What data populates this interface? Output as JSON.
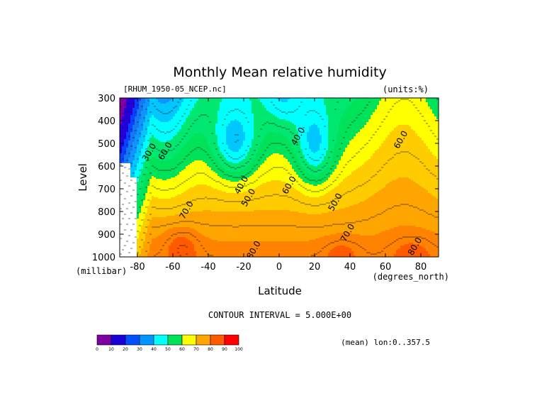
{
  "chart_data": {
    "type": "heatmap",
    "title": "Monthly Mean relative humidity",
    "dataset_label": "[RHUM_1950-05_NCEP.nc]",
    "units_label": "(units:%)",
    "xlabel": "Latitude",
    "x_units": "(degrees_north)",
    "ylabel": "Level",
    "y_units": "(millibar)",
    "xlim": [
      -90,
      90
    ],
    "ylim": [
      1000,
      300
    ],
    "x_ticks": [
      -80,
      -60,
      -40,
      -20,
      0,
      20,
      40,
      60,
      80
    ],
    "y_ticks": [
      300,
      400,
      500,
      600,
      700,
      800,
      900,
      1000
    ],
    "contour_interval_text": "CONTOUR INTERVAL = 5.000E+00",
    "mean_text": "(mean) lon:0..357.5",
    "contour_labels": [
      {
        "text": "30.0",
        "x": -72,
        "y": 545
      },
      {
        "text": "60.0",
        "x": -63,
        "y": 540
      },
      {
        "text": "40.0",
        "x": -20,
        "y": 690
      },
      {
        "text": "50.0",
        "x": -16,
        "y": 745
      },
      {
        "text": "60.0",
        "x": 7,
        "y": 690
      },
      {
        "text": "40.0",
        "x": 12,
        "y": 475
      },
      {
        "text": "50.0",
        "x": 33,
        "y": 765
      },
      {
        "text": "70.0",
        "x": -51,
        "y": 800
      },
      {
        "text": "70.0",
        "x": 40,
        "y": 900
      },
      {
        "text": "80.0",
        "x": -13,
        "y": 975
      },
      {
        "text": "80.0",
        "x": 78,
        "y": 960
      },
      {
        "text": "60.0",
        "x": 70,
        "y": 490
      }
    ],
    "colorbar": {
      "levels": [
        "0",
        "10",
        "20",
        "30",
        "40",
        "50",
        "60",
        "70",
        "80",
        "90",
        "100"
      ],
      "colors": [
        "#7d00a3",
        "#1a00d8",
        "#0050ff",
        "#0095ff",
        "#00ffff",
        "#00e25a",
        "#ffff00",
        "#ffa500",
        "#ff5a00",
        "#ff0000"
      ]
    },
    "band_colors": {
      "25": "#2400dd",
      "30": "#0a40ff",
      "35": "#1478f0",
      "40": "#0f95ff",
      "45": "#00c8ff",
      "50": "#00ffff",
      "55": "#00e870",
      "60": "#00e25a",
      "65": "#ffff00",
      "70": "#ffcc00",
      "75": "#ffa500",
      "80": "#ff8200",
      "85": "#ff5a00",
      "90": "#ff0000"
    }
  }
}
